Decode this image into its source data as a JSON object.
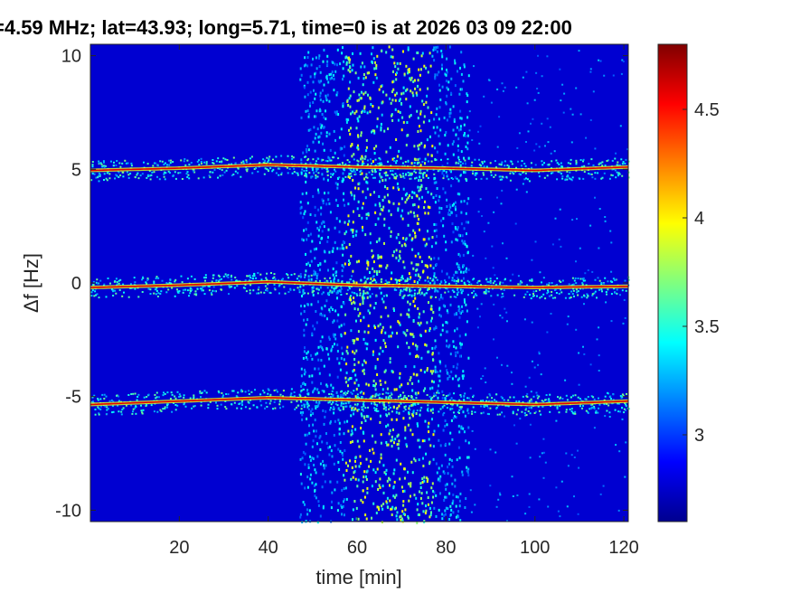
{
  "chart_data": {
    "type": "heatmap",
    "title": "=4.59 MHz;  lat=43.93; long=5.71, time=0 is at 2026 03 09 22:00",
    "xlabel": "time [min]",
    "ylabel": "Δf [Hz]",
    "xlim": [
      0,
      121
    ],
    "ylim": [
      -10.5,
      10.5
    ],
    "xticks": [
      20,
      40,
      60,
      80,
      100,
      120
    ],
    "yticks": [
      10,
      5,
      0,
      -5,
      -10
    ],
    "colorbar": {
      "colormap": "jet",
      "clim": [
        2.6,
        4.8
      ],
      "ticks": [
        3,
        3.5,
        4,
        4.5
      ]
    },
    "series": [
      {
        "values": [
          [
            0,
            4.95
          ],
          [
            20,
            5.05
          ],
          [
            40,
            5.2
          ],
          [
            60,
            5.1
          ],
          [
            80,
            5.05
          ],
          [
            100,
            4.95
          ],
          [
            121,
            5.1
          ]
        ]
      },
      {
        "values": [
          [
            0,
            -0.2
          ],
          [
            20,
            -0.1
          ],
          [
            40,
            0.05
          ],
          [
            60,
            -0.1
          ],
          [
            80,
            -0.15
          ],
          [
            100,
            -0.2
          ],
          [
            121,
            -0.15
          ]
        ]
      },
      {
        "values": [
          [
            0,
            -5.35
          ],
          [
            20,
            -5.2
          ],
          [
            40,
            -5.05
          ],
          [
            60,
            -5.15
          ],
          [
            80,
            -5.25
          ],
          [
            100,
            -5.35
          ],
          [
            121,
            -5.2
          ]
        ]
      }
    ],
    "noise_band": {
      "x_range": [
        47,
        85
      ],
      "core_range": [
        57,
        77
      ]
    }
  }
}
